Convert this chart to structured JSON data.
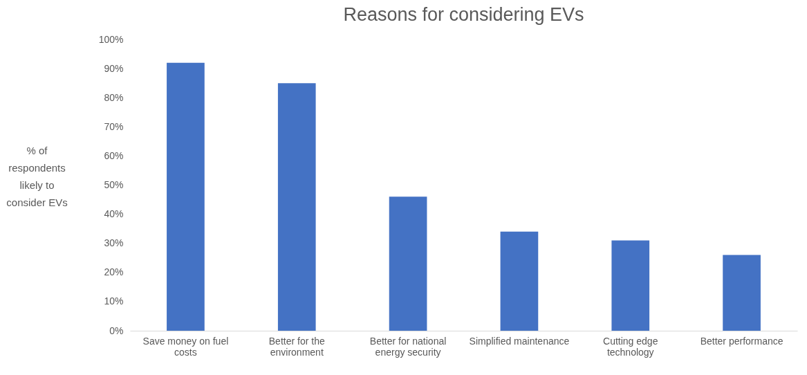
{
  "chart_data": {
    "type": "bar",
    "title": "Reasons for considering EVs",
    "ylabel": "% of respondents likely to consider EVs",
    "categories": [
      "Save money on fuel costs",
      "Better for the environment",
      "Better for national energy security",
      "Simplified maintenance",
      "Cutting edge technology",
      "Better performance"
    ],
    "values": [
      92,
      85,
      46,
      34,
      31,
      26
    ],
    "color": "#4472c4",
    "ylim": [
      0,
      100
    ],
    "yticks": [
      {
        "value": 0,
        "label": "0%"
      },
      {
        "value": 10,
        "label": "10%"
      },
      {
        "value": 20,
        "label": "20%"
      },
      {
        "value": 30,
        "label": "30%"
      },
      {
        "value": 40,
        "label": "40%"
      },
      {
        "value": 50,
        "label": "50%"
      },
      {
        "value": 60,
        "label": "60%"
      },
      {
        "value": 70,
        "label": "70%"
      },
      {
        "value": 80,
        "label": "80%"
      },
      {
        "value": 90,
        "label": "90%"
      },
      {
        "value": 100,
        "label": "100%"
      }
    ],
    "grid": false
  }
}
